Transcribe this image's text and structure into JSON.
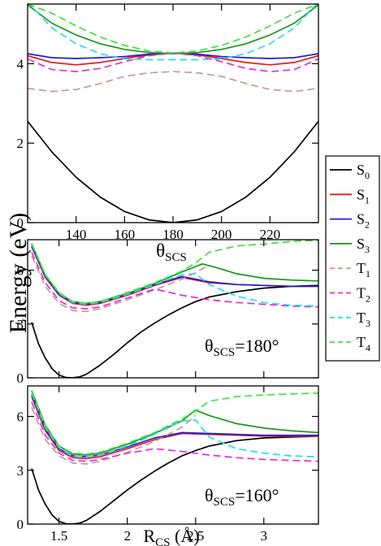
{
  "figure": {
    "ylabel": "Energy (eV)",
    "legend": {
      "placement": "right",
      "entries": [
        {
          "label": "S",
          "sub": "0",
          "color": "#000000",
          "dash": "solid"
        },
        {
          "label": "S",
          "sub": "1",
          "color": "#e41a1c",
          "dash": "solid"
        },
        {
          "label": "S",
          "sub": "2",
          "color": "#1f1fd6",
          "dash": "solid"
        },
        {
          "label": "S",
          "sub": "3",
          "color": "#17981d",
          "dash": "solid"
        },
        {
          "label": "T",
          "sub": "1",
          "color": "#c49a98",
          "dash": "dashed"
        },
        {
          "label": "T",
          "sub": "2",
          "color": "#e42fd6",
          "dash": "dashed"
        },
        {
          "label": "T",
          "sub": "3",
          "color": "#22e1e8",
          "dash": "dashed"
        },
        {
          "label": "T",
          "sub": "4",
          "color": "#41e23a",
          "dash": "dashed"
        }
      ]
    }
  },
  "chart_data": [
    {
      "type": "line",
      "panel": "top",
      "xlabel": "θSCS",
      "xlabel_main": "θ",
      "xlabel_sub": "SCS",
      "xlim": [
        120,
        240
      ],
      "ylim": [
        0,
        5.5
      ],
      "xticks": [
        140,
        160,
        180,
        200,
        220
      ],
      "xtick_labels": [
        "140",
        "160",
        "180",
        "200",
        "220"
      ],
      "yticks": [
        0,
        2,
        4
      ],
      "ytick_labels": [
        "0",
        "2",
        "4"
      ],
      "grid": false,
      "series": [
        {
          "name": "S0",
          "x": [
            120,
            130,
            140,
            150,
            160,
            170,
            180,
            190,
            200,
            210,
            220,
            230,
            240
          ],
          "y": [
            2.55,
            1.78,
            1.14,
            0.64,
            0.28,
            0.07,
            0.0,
            0.07,
            0.28,
            0.64,
            1.14,
            1.78,
            2.55
          ]
        },
        {
          "name": "S1",
          "x": [
            120,
            130,
            140,
            150,
            160,
            170,
            180,
            190,
            200,
            210,
            220,
            230,
            240
          ],
          "y": [
            4.2,
            4.03,
            3.97,
            4.03,
            4.13,
            4.22,
            4.27,
            4.22,
            4.13,
            4.03,
            3.97,
            4.03,
            4.2
          ]
        },
        {
          "name": "S2",
          "x": [
            120,
            130,
            140,
            150,
            160,
            170,
            180,
            190,
            200,
            210,
            220,
            230,
            240
          ],
          "y": [
            4.25,
            4.15,
            4.13,
            4.15,
            4.18,
            4.24,
            4.27,
            4.24,
            4.18,
            4.15,
            4.13,
            4.15,
            4.25
          ]
        },
        {
          "name": "S3",
          "x": [
            120,
            130,
            140,
            150,
            160,
            170,
            180,
            190,
            200,
            210,
            220,
            230,
            240
          ],
          "y": [
            5.48,
            5.02,
            4.72,
            4.5,
            4.36,
            4.28,
            4.25,
            4.28,
            4.36,
            4.5,
            4.72,
            5.02,
            5.48
          ]
        },
        {
          "name": "T1",
          "x": [
            120,
            130,
            140,
            150,
            160,
            170,
            180,
            190,
            200,
            210,
            220,
            230,
            240
          ],
          "y": [
            3.38,
            3.3,
            3.35,
            3.5,
            3.68,
            3.77,
            3.8,
            3.77,
            3.68,
            3.5,
            3.35,
            3.3,
            3.38
          ]
        },
        {
          "name": "T2",
          "x": [
            120,
            130,
            140,
            150,
            160,
            170,
            180,
            190,
            200,
            210,
            220,
            230,
            240
          ],
          "y": [
            4.12,
            3.85,
            3.8,
            3.88,
            4.05,
            4.2,
            4.27,
            4.2,
            4.05,
            3.88,
            3.8,
            3.85,
            4.12
          ]
        },
        {
          "name": "T3",
          "x": [
            120,
            130,
            140,
            150,
            160,
            170,
            180,
            190,
            200,
            210,
            220,
            230,
            240
          ],
          "y": [
            5.55,
            4.9,
            4.5,
            4.25,
            4.12,
            4.1,
            4.1,
            4.1,
            4.12,
            4.25,
            4.5,
            4.9,
            5.55
          ]
        },
        {
          "name": "T4",
          "x": [
            120,
            130,
            140,
            150,
            160,
            170,
            180,
            190,
            200,
            210,
            220,
            230,
            240
          ],
          "y": [
            5.5,
            5.27,
            4.95,
            4.67,
            4.46,
            4.32,
            4.27,
            4.32,
            4.46,
            4.67,
            4.95,
            5.27,
            5.5
          ]
        }
      ]
    },
    {
      "type": "line",
      "panel": "middle",
      "annotation": "θSCS=180°",
      "annotation_main": "θ",
      "annotation_sub": "SCS",
      "annotation_rest": "=180°",
      "xlim": [
        1.27,
        3.4
      ],
      "ylim": [
        0,
        7.7
      ],
      "xticks": [
        1.5,
        2,
        2.5,
        3
      ],
      "yticks": [
        0,
        3,
        6
      ],
      "ytick_labels": [
        "0",
        "3",
        "6"
      ],
      "grid": false,
      "series": [
        {
          "name": "S0",
          "x": [
            1.3,
            1.35,
            1.4,
            1.45,
            1.5,
            1.55,
            1.6,
            1.65,
            1.7,
            1.8,
            1.9,
            2.0,
            2.1,
            2.2,
            2.3,
            2.4,
            2.5,
            2.6,
            2.8,
            3.0,
            3.2,
            3.4
          ],
          "y": [
            3.1,
            1.9,
            1.1,
            0.5,
            0.15,
            0.02,
            0.0,
            0.05,
            0.2,
            0.7,
            1.3,
            1.95,
            2.55,
            3.05,
            3.5,
            3.9,
            4.25,
            4.5,
            4.8,
            5.0,
            5.1,
            5.15
          ]
        },
        {
          "name": "S1",
          "x": [
            1.3,
            1.4,
            1.5,
            1.6,
            1.7,
            1.8,
            2.0,
            2.2,
            2.4,
            2.6,
            2.8,
            3.0,
            3.2,
            3.4
          ],
          "y": [
            7.3,
            5.6,
            4.6,
            4.15,
            4.05,
            4.15,
            4.6,
            5.15,
            5.6,
            5.3,
            5.2,
            5.15,
            5.1,
            5.1
          ]
        },
        {
          "name": "S2",
          "x": [
            1.3,
            1.4,
            1.5,
            1.6,
            1.7,
            1.8,
            2.0,
            2.2,
            2.4,
            2.6,
            2.8,
            3.0,
            3.2,
            3.4
          ],
          "y": [
            7.35,
            5.65,
            4.65,
            4.2,
            4.1,
            4.2,
            4.65,
            5.2,
            5.65,
            5.35,
            5.2,
            5.15,
            5.1,
            5.1
          ]
        },
        {
          "name": "S3",
          "x": [
            1.3,
            1.4,
            1.5,
            1.6,
            1.7,
            1.8,
            2.0,
            2.2,
            2.4,
            2.55,
            2.65,
            2.8,
            3.0,
            3.2,
            3.4
          ],
          "y": [
            7.45,
            5.7,
            4.7,
            4.25,
            4.15,
            4.25,
            4.7,
            5.25,
            5.9,
            6.35,
            6.15,
            5.8,
            5.55,
            5.45,
            5.4
          ]
        },
        {
          "name": "T1",
          "x": [
            1.3,
            1.4,
            1.5,
            1.6,
            1.7,
            1.8,
            2.0,
            2.2,
            2.4,
            2.5,
            2.6
          ],
          "y": [
            6.8,
            5.1,
            4.15,
            3.75,
            3.7,
            3.85,
            4.35,
            4.9,
            5.5,
            5.85,
            6.3
          ]
        },
        {
          "name": "T2",
          "x": [
            1.3,
            1.4,
            1.5,
            1.6,
            1.7,
            1.8,
            2.0,
            2.2,
            2.4,
            2.6,
            2.8,
            3.0,
            3.2,
            3.4
          ],
          "y": [
            7.0,
            5.3,
            4.3,
            3.9,
            3.85,
            3.95,
            4.45,
            4.95,
            4.6,
            4.35,
            4.2,
            4.1,
            4.0,
            3.95
          ]
        },
        {
          "name": "T3",
          "x": [
            1.3,
            1.4,
            1.5,
            1.6,
            1.7,
            1.8,
            2.0,
            2.2,
            2.4,
            2.5,
            2.6,
            2.8,
            3.0,
            3.2,
            3.4
          ],
          "y": [
            7.45,
            5.75,
            4.7,
            4.2,
            4.1,
            4.2,
            4.65,
            5.2,
            5.75,
            5.8,
            5.2,
            4.55,
            4.2,
            4.05,
            4.0
          ]
        },
        {
          "name": "T4",
          "x": [
            1.3,
            1.4,
            1.5,
            1.6,
            1.7,
            1.8,
            2.0,
            2.2,
            2.4,
            2.5,
            2.6,
            2.8,
            3.0,
            3.2,
            3.3,
            3.4
          ],
          "y": [
            7.5,
            5.75,
            4.75,
            4.25,
            4.15,
            4.25,
            4.75,
            5.3,
            5.95,
            6.4,
            7.0,
            7.35,
            7.45,
            7.6,
            7.65,
            7.65
          ]
        }
      ]
    },
    {
      "type": "line",
      "panel": "bottom",
      "xlabel": "RCS (Å)",
      "xlabel_main": "R",
      "xlabel_sub": "CS",
      "xlabel_rest": " (Å)",
      "annotation": "θSCS=160°",
      "annotation_main": "θ",
      "annotation_sub": "SCS",
      "annotation_rest": "=160°",
      "xlim": [
        1.27,
        3.4
      ],
      "ylim": [
        0,
        7.7
      ],
      "xticks": [
        1.5,
        2,
        2.5,
        3
      ],
      "xtick_labels": [
        "1.5",
        "2",
        "2.5",
        "3"
      ],
      "yticks": [
        0,
        3,
        6
      ],
      "ytick_labels": [
        "0",
        "3",
        "6"
      ],
      "grid": false,
      "series": [
        {
          "name": "S0",
          "x": [
            1.3,
            1.35,
            1.4,
            1.45,
            1.5,
            1.55,
            1.6,
            1.65,
            1.7,
            1.8,
            1.9,
            2.0,
            2.1,
            2.2,
            2.3,
            2.4,
            2.5,
            2.6,
            2.8,
            3.0,
            3.2,
            3.4
          ],
          "y": [
            3.1,
            1.9,
            1.1,
            0.5,
            0.15,
            0.02,
            0.0,
            0.05,
            0.2,
            0.7,
            1.3,
            1.9,
            2.45,
            2.95,
            3.4,
            3.8,
            4.1,
            4.35,
            4.65,
            4.8,
            4.85,
            4.9
          ]
        },
        {
          "name": "S1",
          "x": [
            1.3,
            1.4,
            1.5,
            1.6,
            1.7,
            1.8,
            2.0,
            2.2,
            2.4,
            2.6,
            2.8,
            3.0,
            3.2,
            3.4
          ],
          "y": [
            7.1,
            5.2,
            4.1,
            3.7,
            3.65,
            3.75,
            4.2,
            4.7,
            5.05,
            5.0,
            4.95,
            4.9,
            4.9,
            4.9
          ]
        },
        {
          "name": "S2",
          "x": [
            1.3,
            1.4,
            1.5,
            1.6,
            1.7,
            1.8,
            2.0,
            2.2,
            2.4,
            2.6,
            2.8,
            3.0,
            3.2,
            3.4
          ],
          "y": [
            7.2,
            5.3,
            4.2,
            3.8,
            3.75,
            3.85,
            4.3,
            4.8,
            5.1,
            5.05,
            5.0,
            4.95,
            4.95,
            4.95
          ]
        },
        {
          "name": "S3",
          "x": [
            1.3,
            1.4,
            1.5,
            1.6,
            1.7,
            1.8,
            2.0,
            2.2,
            2.4,
            2.5,
            2.6,
            2.8,
            3.0,
            3.2,
            3.4
          ],
          "y": [
            7.45,
            5.5,
            4.35,
            3.9,
            3.85,
            3.95,
            4.45,
            5.05,
            5.75,
            6.35,
            6.05,
            5.6,
            5.35,
            5.2,
            5.1
          ]
        },
        {
          "name": "T1",
          "x": [
            1.3,
            1.4,
            1.5,
            1.6,
            1.7,
            1.8,
            2.0,
            2.2,
            2.4,
            2.5
          ],
          "y": [
            6.5,
            4.7,
            3.8,
            3.4,
            3.35,
            3.5,
            4.0,
            4.6,
            5.4,
            6.05
          ]
        },
        {
          "name": "T2",
          "x": [
            1.3,
            1.4,
            1.5,
            1.6,
            1.7,
            1.8,
            2.0,
            2.2,
            2.4,
            2.6,
            2.8,
            3.0,
            3.2,
            3.4
          ],
          "y": [
            6.8,
            4.95,
            3.95,
            3.55,
            3.5,
            3.6,
            3.95,
            4.2,
            4.05,
            3.85,
            3.7,
            3.6,
            3.55,
            3.5
          ]
        },
        {
          "name": "T3",
          "x": [
            1.3,
            1.4,
            1.5,
            1.6,
            1.7,
            1.8,
            2.0,
            2.2,
            2.4,
            2.5,
            2.6,
            2.8,
            3.0,
            3.2,
            3.4
          ],
          "y": [
            7.3,
            5.35,
            4.25,
            3.8,
            3.75,
            3.85,
            4.35,
            5.0,
            5.75,
            5.8,
            4.85,
            4.2,
            3.95,
            3.8,
            3.75
          ]
        },
        {
          "name": "T4",
          "x": [
            1.3,
            1.4,
            1.5,
            1.6,
            1.7,
            1.8,
            2.0,
            2.2,
            2.4,
            2.5,
            2.6,
            2.8,
            3.0,
            3.2,
            3.4
          ],
          "y": [
            7.4,
            5.45,
            4.35,
            3.95,
            3.9,
            4.0,
            4.5,
            5.1,
            5.85,
            6.3,
            6.85,
            7.1,
            7.2,
            7.25,
            7.3
          ]
        }
      ]
    }
  ]
}
